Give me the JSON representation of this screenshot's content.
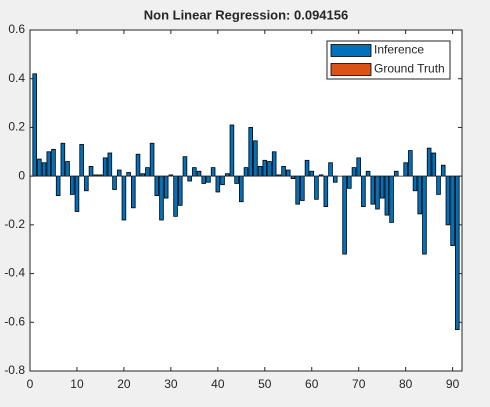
{
  "chart_data": {
    "type": "bar",
    "title": "Non Linear Regression: 0.094156",
    "legend_entries": [
      {
        "name": "Inference",
        "color": "#0072bd"
      },
      {
        "name": "Ground Truth",
        "color": "#d95319"
      }
    ],
    "legend_position": "northeast",
    "series": [
      {
        "name": "Inference",
        "color": "#0072bd",
        "x": [
          1,
          2,
          3,
          4,
          5,
          6,
          7,
          8,
          9,
          10,
          11,
          12,
          13,
          14,
          15,
          16,
          17,
          18,
          19,
          20,
          21,
          22,
          23,
          24,
          25,
          26,
          27,
          28,
          29,
          30,
          31,
          32,
          33,
          34,
          35,
          36,
          37,
          38,
          39,
          40,
          41,
          42,
          43,
          44,
          45,
          46,
          47,
          48,
          49,
          50,
          51,
          52,
          53,
          54,
          55,
          56,
          57,
          58,
          59,
          60,
          61,
          62,
          63,
          64,
          65,
          66,
          67,
          68,
          69,
          70,
          71,
          72,
          73,
          74,
          75,
          76,
          77,
          78,
          79,
          80,
          81,
          82,
          83,
          84,
          85,
          86,
          87,
          88,
          89,
          90,
          91
        ],
        "values": [
          0.42,
          0.07,
          0.055,
          0.1,
          0.11,
          -0.08,
          0.135,
          0.06,
          -0.075,
          -0.145,
          0.13,
          -0.06,
          0.04,
          0.005,
          0.005,
          0.075,
          0.095,
          -0.055,
          0.025,
          -0.18,
          0.015,
          -0.13,
          0.09,
          0.01,
          0.035,
          0.135,
          -0.08,
          -0.18,
          -0.09,
          0.005,
          -0.165,
          -0.12,
          0.08,
          -0.02,
          0.035,
          0.02,
          -0.03,
          -0.025,
          0.035,
          -0.065,
          -0.035,
          0.01,
          0.21,
          -0.03,
          -0.105,
          0.035,
          0.2,
          0.145,
          0.04,
          0.065,
          0.06,
          0.1,
          0.005,
          0.04,
          0.025,
          -0.01,
          -0.115,
          -0.1,
          0.065,
          0.02,
          -0.095,
          0.005,
          -0.125,
          0.055,
          -0.025,
          0,
          -0.32,
          -0.05,
          0.035,
          0.075,
          -0.125,
          0.02,
          -0.115,
          -0.135,
          -0.09,
          -0.16,
          -0.19,
          0.02,
          0,
          0.055,
          0.105,
          -0.06,
          -0.155,
          -0.32,
          0.115,
          0.095,
          -0.075,
          0.045,
          -0.2,
          -0.285,
          -0.63
        ]
      }
    ],
    "xlim": [
      0,
      92
    ],
    "xticks": [
      0,
      10,
      20,
      30,
      40,
      50,
      60,
      70,
      80,
      90
    ],
    "ylim": [
      -0.8,
      0.6
    ],
    "yticks": [
      -0.8,
      -0.6,
      -0.4,
      -0.2,
      0,
      0.2,
      0.4,
      0.6
    ],
    "grid": false
  }
}
